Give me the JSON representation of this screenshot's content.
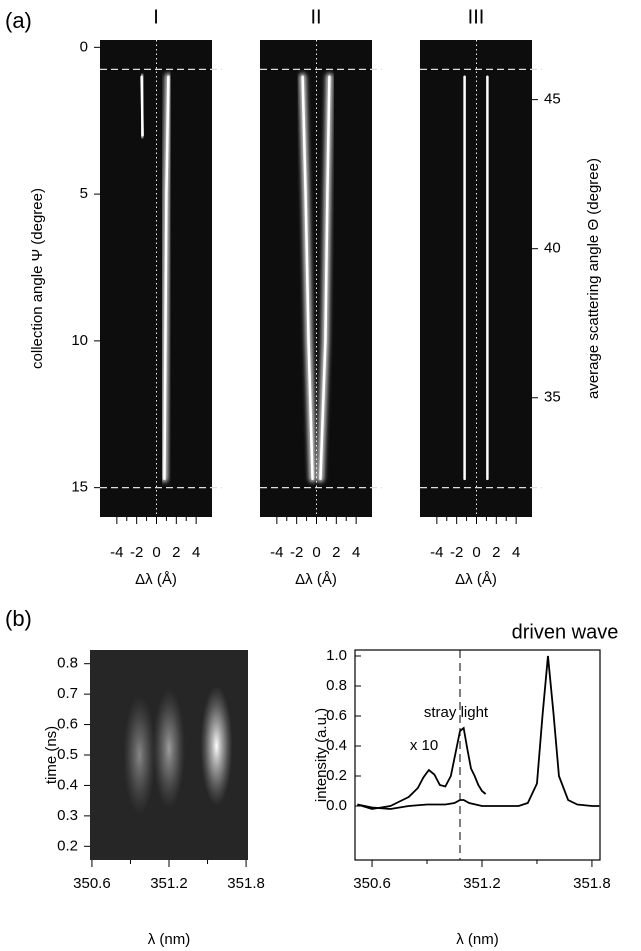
{
  "chart_data": [
    {
      "type": "streak-image",
      "panel_label": "(a)",
      "title": "I",
      "xlabel": "Δλ (Å)",
      "ylabel": "collection angle Ψ (degree)",
      "xlim": [
        -5.7,
        5.6
      ],
      "xticks": [
        -4,
        -2,
        0,
        2,
        4
      ],
      "ylim": [
        -0.25,
        16
      ],
      "y_inverted": true,
      "yticks": [
        0,
        5,
        10,
        15
      ],
      "hlines": [
        0.75,
        15
      ],
      "vline": 0,
      "streaks": [
        {
          "psi": [
            1,
            5,
            10,
            14.7
          ],
          "x": [
            1.2,
            1.0,
            0.9,
            0.8
          ]
        },
        {
          "psi": [
            1,
            3
          ],
          "x": [
            -1.5,
            -1.4
          ]
        }
      ]
    },
    {
      "type": "streak-image",
      "title": "II",
      "xlabel": "Δλ (Å)",
      "xlim": [
        -5.7,
        5.6
      ],
      "xticks": [
        -4,
        -2,
        0,
        2,
        4
      ],
      "ylim": [
        -0.25,
        16
      ],
      "y_inverted": true,
      "hlines": [
        0.75,
        15
      ],
      "vline": 0,
      "streaks": [
        {
          "psi": [
            1,
            5,
            10,
            14.7
          ],
          "x": [
            -1.4,
            -1.1,
            -0.8,
            -0.4
          ]
        },
        {
          "psi": [
            1,
            5,
            10,
            14.7
          ],
          "x": [
            1.3,
            1.1,
            0.9,
            0.4
          ]
        }
      ]
    },
    {
      "type": "streak-image",
      "title": "III",
      "xlabel": "Δλ (Å)",
      "y2label": "average scattering angle Θ (degree)",
      "xlim": [
        -5.7,
        5.6
      ],
      "xticks": [
        -4,
        -2,
        0,
        2,
        4
      ],
      "ylim": [
        -0.25,
        16
      ],
      "y_inverted": true,
      "y2lim": [
        31,
        47
      ],
      "y2ticks": [
        35,
        40,
        45
      ],
      "hlines": [
        0.75,
        15
      ],
      "vline": 0,
      "streaks": [
        {
          "psi": [
            1,
            14.7
          ],
          "x": [
            -1.2,
            -1.2
          ]
        },
        {
          "psi": [
            1,
            14.7
          ],
          "x": [
            1.1,
            1.1
          ]
        }
      ]
    },
    {
      "type": "heatmap",
      "panel_label": "(b)",
      "xlabel": "λ (nm)",
      "ylabel": "time (ns)",
      "xlim": [
        350.585,
        351.815
      ],
      "xticks": [
        350.6,
        351.2,
        351.8
      ],
      "ylim": [
        0.155,
        0.845
      ],
      "yticks": [
        0.2,
        0.3,
        0.4,
        0.5,
        0.6,
        0.7,
        0.8
      ],
      "spots": {
        "x": [
          350.97,
          351.2,
          351.57
        ],
        "y": [
          0.5,
          0.52,
          0.53
        ],
        "intensity": [
          0.45,
          0.55,
          1
        ]
      }
    },
    {
      "type": "line",
      "xlabel": "λ (nm)",
      "ylabel": "intensity (a.u.)",
      "xlim": [
        350.507,
        351.844
      ],
      "xticks": [
        350.6,
        351.2,
        351.8
      ],
      "ylim": [
        -0.36,
        1.04
      ],
      "yticks": [
        {
          "value": 0,
          "label": "0.0"
        },
        0.2,
        0.4,
        0.6,
        0.8,
        {
          "value": 1,
          "label": "1.0"
        }
      ],
      "vline": 351.08,
      "annotations": [
        "x 10",
        "stray light",
        "driven wave"
      ],
      "series": [
        {
          "color": "#000000",
          "x": [
            350.52,
            350.6,
            350.7,
            350.8,
            350.9,
            351.0,
            351.05,
            351.08,
            351.1,
            351.13,
            351.2,
            351.3,
            351.4,
            351.45,
            351.5,
            351.53,
            351.56,
            351.59,
            351.62,
            351.67,
            351.72,
            351.8,
            351.84
          ],
          "values": [
            0.01,
            -0.01,
            -0.02,
            0.0,
            0.01,
            0.01,
            0.02,
            0.04,
            0.04,
            0.02,
            0.0,
            0.0,
            0.0,
            0.02,
            0.15,
            0.6,
            1.0,
            0.62,
            0.2,
            0.04,
            0.01,
            0.0,
            0.0
          ]
        },
        {
          "color": "#000000",
          "x": [
            350.52,
            350.6,
            350.7,
            350.75,
            350.8,
            350.85,
            350.88,
            350.91,
            350.94,
            350.97,
            351.0,
            351.03,
            351.06,
            351.08,
            351.1,
            351.12,
            351.14,
            351.16,
            351.18,
            351.2,
            351.22
          ],
          "values": [
            0.01,
            -0.02,
            0.0,
            0.03,
            0.06,
            0.12,
            0.19,
            0.24,
            0.21,
            0.14,
            0.13,
            0.2,
            0.38,
            0.5,
            0.52,
            0.38,
            0.25,
            0.2,
            0.14,
            0.1,
            0.08
          ]
        }
      ]
    }
  ]
}
